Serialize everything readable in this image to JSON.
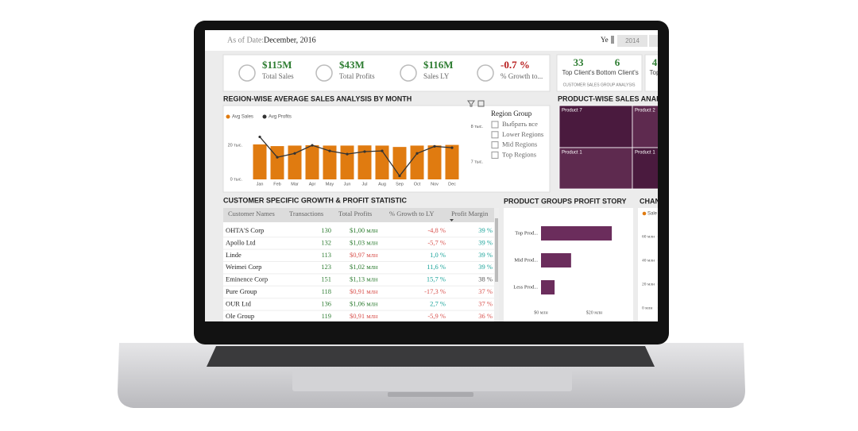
{
  "header": {
    "as_of_label": "As of Date:",
    "as_of_value": "December, 2016",
    "year_label": "Ye",
    "year_option": "2014"
  },
  "kpis": [
    {
      "value": "$115M",
      "label": "Total Sales",
      "color": "#2e7d32"
    },
    {
      "value": "$43M",
      "label": "Total Profits",
      "color": "#2e7d32"
    },
    {
      "value": "$116M",
      "label": "Sales LY",
      "color": "#2e7d32"
    },
    {
      "value": "-0.7 %",
      "label": "% Growth to...",
      "color": "#b71c1c"
    }
  ],
  "client_cards": {
    "items": [
      {
        "value": "33",
        "label": "Top Client's"
      },
      {
        "value": "6",
        "label": "Bottom Client's"
      },
      {
        "value": "4",
        "label": "Top"
      }
    ],
    "caption": "CUSTOMER SALES GROUP ANALYSIS"
  },
  "region_chart": {
    "type": "bar",
    "title": "REGION-WISE AVERAGE SALES ANALYSIS BY MONTH",
    "categories": [
      "Jan",
      "Feb",
      "Mar",
      "Apr",
      "May",
      "Jun",
      "Jul",
      "Aug",
      "Sep",
      "Oct",
      "Nov",
      "Dec"
    ],
    "series": [
      {
        "name": "Avg Sales",
        "color": "#e07b10",
        "values": [
          20.5,
          19.5,
          19.8,
          20,
          19.8,
          19.8,
          19.9,
          19.8,
          19,
          19.8,
          19.9,
          20.2
        ]
      },
      {
        "name": "Avg Profits",
        "color": "#333333",
        "type": "line",
        "axis": "y2",
        "values": [
          7.71,
          7.13,
          7.24,
          7.47,
          7.31,
          7.22,
          7.29,
          7.31,
          6.6,
          7.24,
          7.44,
          7.4
        ]
      }
    ],
    "ylim": [
      0,
      35
    ],
    "yticks": [
      {
        "value": 0,
        "label": "0 тыс."
      },
      {
        "value": 20,
        "label": "20 тыс."
      }
    ],
    "y2lim": [
      6.5,
      8.2
    ],
    "y2ticks": [
      {
        "value": 7,
        "label": "7 тыс."
      },
      {
        "value": 8,
        "label": "8 тыс."
      }
    ]
  },
  "region_slicer": {
    "title": "Region Group",
    "options": [
      "Выбрать все",
      "Lower Regions",
      "Mid Regions",
      "Top Regions"
    ]
  },
  "treemap": {
    "title": "PRODUCT-WISE SALES ANALYS",
    "tiles": [
      "Product 7",
      "Product 2",
      "Product 1",
      "Product 1"
    ]
  },
  "customer_table": {
    "title": "CUSTOMER SPECIFIC GROWTH & PROFIT STATISTIC",
    "columns": [
      "Customer Names",
      "Transactions",
      "Total Profits",
      "% Growth to LY",
      "Profit Margin"
    ],
    "rows": [
      {
        "cells": [
          "OHTA'S Corp",
          "130",
          "$1,00 млн",
          "-4,8 %",
          "39 %"
        ],
        "colors": [
          "#222",
          "#2e7d32",
          "#2e7d32",
          "#d9534f",
          "#1aa39a"
        ]
      },
      {
        "cells": [
          "Apollo Ltd",
          "132",
          "$1,03 млн",
          "-5,7 %",
          "39 %"
        ],
        "colors": [
          "#222",
          "#2e7d32",
          "#2e7d32",
          "#d9534f",
          "#1aa39a"
        ]
      },
      {
        "cells": [
          "Linde",
          "113",
          "$0,97 млн",
          "1,0 %",
          "39 %"
        ],
        "colors": [
          "#222",
          "#2e7d32",
          "#d9534f",
          "#1aa39a",
          "#1aa39a"
        ]
      },
      {
        "cells": [
          "Weimei Corp",
          "123",
          "$1,02 млн",
          "11,6 %",
          "39 %"
        ],
        "colors": [
          "#222",
          "#2e7d32",
          "#2e7d32",
          "#1aa39a",
          "#1aa39a"
        ]
      },
      {
        "cells": [
          "Eminence Corp",
          "151",
          "$1,13 млн",
          "15,7 %",
          "38 %"
        ],
        "colors": [
          "#222",
          "#2e7d32",
          "#2e7d32",
          "#1aa39a",
          "#555"
        ]
      },
      {
        "cells": [
          "Pure Group",
          "118",
          "$0,91 млн",
          "-17,3 %",
          "37 %"
        ],
        "colors": [
          "#222",
          "#2e7d32",
          "#d9534f",
          "#d9534f",
          "#d9534f"
        ]
      },
      {
        "cells": [
          "OUR Ltd",
          "136",
          "$1,06 млн",
          "2,7 %",
          "37 %"
        ],
        "colors": [
          "#222",
          "#2e7d32",
          "#2e7d32",
          "#1aa39a",
          "#d9534f"
        ]
      },
      {
        "cells": [
          "Ole Group",
          "119",
          "$0,91 млн",
          "-5,9 %",
          "36 %"
        ],
        "colors": [
          "#222",
          "#2e7d32",
          "#d9534f",
          "#d9534f",
          "#d9534f"
        ]
      }
    ]
  },
  "product_profit": {
    "type": "bar",
    "orientation": "horizontal",
    "title": "PRODUCT GROUPS PROFIT STORY",
    "categories": [
      "Top Prod...",
      "Mid Prod...",
      "Less Prod..."
    ],
    "values": [
      26.6,
      11.3,
      5.1
    ],
    "color": "#6b2d5c",
    "xlim": [
      0,
      32
    ],
    "xticks": [
      {
        "value": 0,
        "label": "$0 млн"
      },
      {
        "value": 20,
        "label": "$20 млн"
      }
    ]
  },
  "change_chart": {
    "title": "CHAN",
    "legend": "Sale",
    "legend_color": "#e07b10",
    "yticks": [
      {
        "value": 60,
        "label": "60 млн"
      },
      {
        "value": 40,
        "label": "40 млн"
      },
      {
        "value": 20,
        "label": "20 млн"
      },
      {
        "value": 0,
        "label": "0 млн"
      }
    ],
    "ylim": [
      0,
      70
    ]
  }
}
